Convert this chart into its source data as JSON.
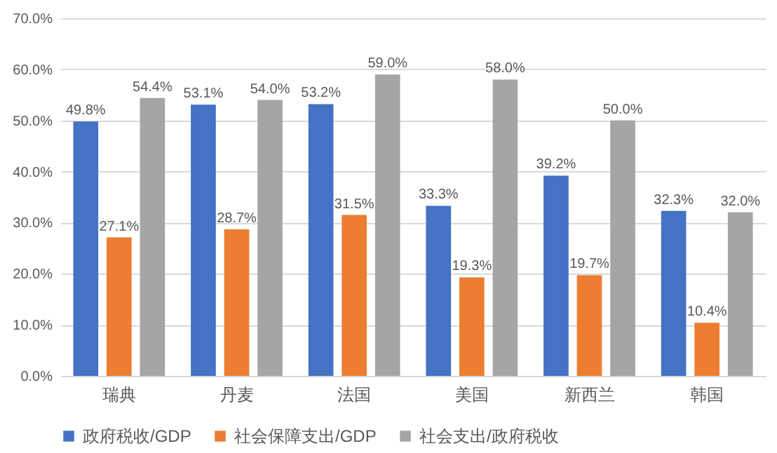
{
  "chart_data": {
    "type": "bar",
    "categories": [
      "瑞典",
      "丹麦",
      "法国",
      "美国",
      "新西兰",
      "韩国"
    ],
    "series": [
      {
        "name": "政府税收/GDP",
        "color": "#4472c4",
        "values": [
          49.8,
          53.1,
          53.2,
          33.3,
          39.2,
          32.3
        ],
        "value_labels": [
          "49.8%",
          "53.1%",
          "53.2%",
          "33.3%",
          "39.2%",
          "32.3%"
        ]
      },
      {
        "name": "社会保障支出/GDP",
        "color": "#ed7d31",
        "values": [
          27.1,
          28.7,
          31.5,
          19.3,
          19.7,
          10.4
        ],
        "value_labels": [
          "27.1%",
          "28.7%",
          "31.5%",
          "19.3%",
          "19.7%",
          "10.4%"
        ]
      },
      {
        "name": "社会支出/政府税收",
        "color": "#a5a5a5",
        "values": [
          54.4,
          54.0,
          59.0,
          58.0,
          50.0,
          32.0
        ],
        "value_labels": [
          "54.4%",
          "54.0%",
          "59.0%",
          "58.0%",
          "50.0%",
          "32.0%"
        ]
      }
    ],
    "ylim": [
      0,
      70
    ],
    "yticks": [
      {
        "value": 0,
        "label": "0.0%"
      },
      {
        "value": 10,
        "label": "10.0%"
      },
      {
        "value": 20,
        "label": "20.0%"
      },
      {
        "value": 30,
        "label": "30.0%"
      },
      {
        "value": 40,
        "label": "40.0%"
      },
      {
        "value": 50,
        "label": "50.0%"
      },
      {
        "value": 60,
        "label": "60.0%"
      },
      {
        "value": 70,
        "label": "70.0%"
      }
    ],
    "grid": "y",
    "legend": "bottom"
  }
}
